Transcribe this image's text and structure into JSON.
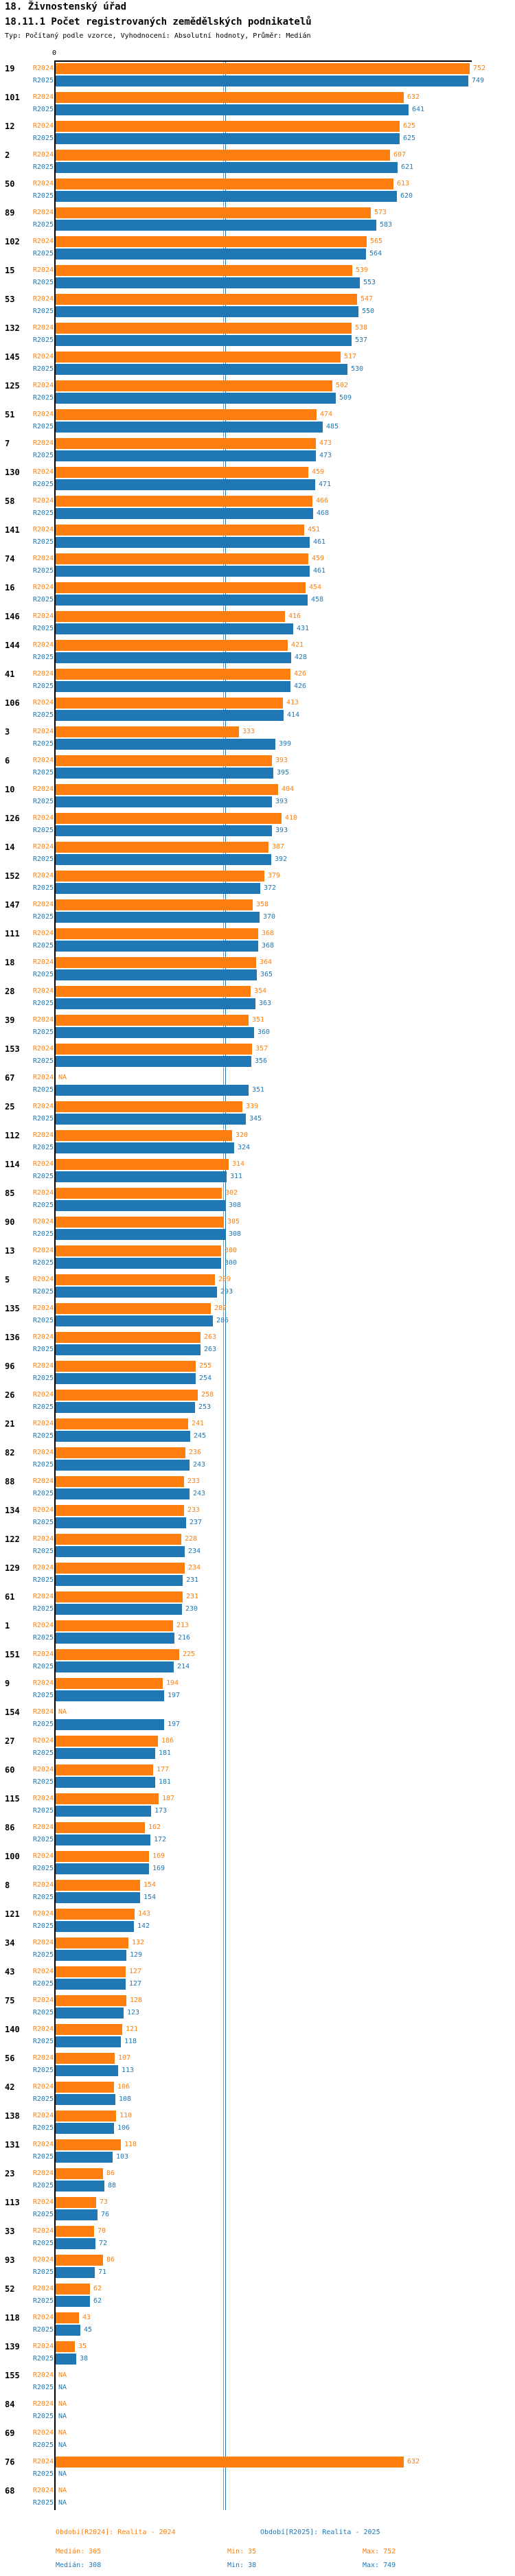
{
  "header": {
    "title": "18. Živnostenský úřad",
    "subtitle": "18.11.1 Počet registrovaných zemědělských podnikatelů",
    "meta": "Typ: Počítaný podle vzorce, Vyhodnocení: Absolutní hodnoty, Průměr: Medián"
  },
  "axis": {
    "zero_tick": "0"
  },
  "na_text": "NA",
  "colors": {
    "r2024": "#ff7f0e",
    "r2025": "#1f77b4"
  },
  "footer": {
    "legend_2024": "Období[R2024]: Realita - 2024",
    "legend_2025": "Období[R2025]: Realita - 2025",
    "median_2024": "Medián: 305",
    "min_2024": "Min: 35",
    "max_2024": "Max: 752",
    "median_2025": "Medián: 308",
    "min_2025": "Min: 38",
    "max_2025": "Max: 749"
  },
  "chart_data": {
    "type": "bar",
    "orientation": "horizontal",
    "title": "18.11.1 Počet registrovaných zemědělských podnikatelů",
    "xlabel": "",
    "ylabel": "",
    "xlim": [
      0,
      752
    ],
    "x_ticks": [
      "0"
    ],
    "grid": false,
    "legend_position": "bottom",
    "na_text": "NA",
    "medians": {
      "R2024": 305,
      "R2025": 308
    },
    "mins": {
      "R2024": 35,
      "R2025": 38
    },
    "maxs": {
      "R2024": 752,
      "R2025": 749
    },
    "categories": [
      "19",
      "101",
      "12",
      "2",
      "50",
      "89",
      "102",
      "15",
      "53",
      "132",
      "145",
      "125",
      "51",
      "7",
      "130",
      "58",
      "141",
      "74",
      "16",
      "146",
      "144",
      "41",
      "106",
      "3",
      "6",
      "10",
      "126",
      "14",
      "152",
      "147",
      "111",
      "18",
      "28",
      "39",
      "153",
      "67",
      "25",
      "112",
      "114",
      "85",
      "90",
      "13",
      "5",
      "135",
      "136",
      "96",
      "26",
      "21",
      "82",
      "88",
      "134",
      "122",
      "129",
      "61",
      "1",
      "151",
      "9",
      "154",
      "27",
      "60",
      "115",
      "86",
      "100",
      "8",
      "121",
      "34",
      "43",
      "75",
      "140",
      "56",
      "42",
      "138",
      "131",
      "23",
      "113",
      "33",
      "93",
      "52",
      "118",
      "139",
      "155",
      "84",
      "69",
      "76",
      "68"
    ],
    "series": [
      {
        "name": "R2024",
        "color": "#ff7f0e",
        "values": [
          752,
          632,
          625,
          607,
          613,
          573,
          565,
          539,
          547,
          538,
          517,
          502,
          474,
          473,
          459,
          466,
          451,
          459,
          454,
          416,
          421,
          426,
          413,
          333,
          393,
          404,
          410,
          387,
          379,
          358,
          368,
          364,
          354,
          351,
          357,
          null,
          339,
          320,
          314,
          302,
          305,
          300,
          289,
          282,
          263,
          255,
          258,
          241,
          236,
          233,
          233,
          228,
          234,
          231,
          213,
          225,
          194,
          null,
          186,
          177,
          187,
          162,
          169,
          154,
          143,
          132,
          127,
          128,
          121,
          107,
          106,
          110,
          118,
          86,
          73,
          70,
          86,
          62,
          43,
          35,
          null,
          null,
          null,
          632,
          null
        ]
      },
      {
        "name": "R2025",
        "color": "#1f77b4",
        "values": [
          749,
          641,
          625,
          621,
          620,
          583,
          564,
          553,
          550,
          537,
          530,
          509,
          485,
          473,
          471,
          468,
          461,
          461,
          458,
          431,
          428,
          426,
          414,
          399,
          395,
          393,
          393,
          392,
          372,
          370,
          368,
          365,
          363,
          360,
          356,
          351,
          345,
          324,
          311,
          308,
          308,
          300,
          293,
          286,
          263,
          254,
          253,
          245,
          243,
          243,
          237,
          234,
          231,
          230,
          216,
          214,
          197,
          197,
          181,
          181,
          173,
          172,
          169,
          154,
          142,
          129,
          127,
          123,
          118,
          113,
          108,
          106,
          103,
          88,
          76,
          72,
          71,
          62,
          45,
          38,
          null,
          null,
          null,
          null,
          null
        ]
      }
    ]
  }
}
